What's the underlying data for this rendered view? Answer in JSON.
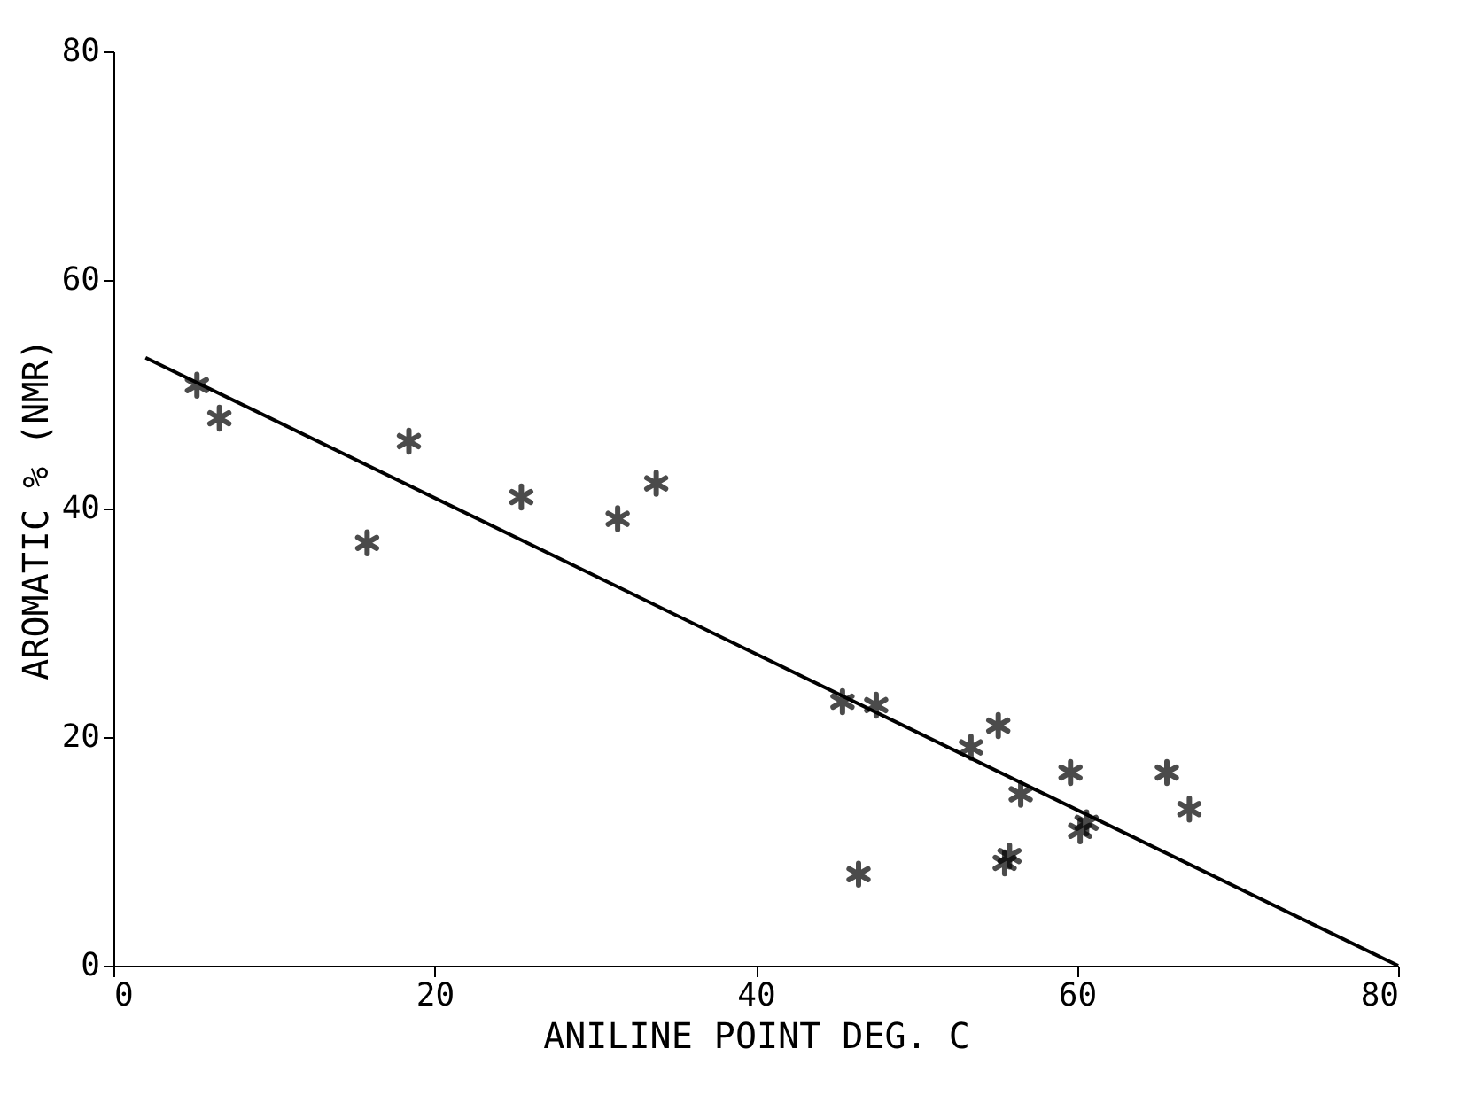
{
  "chart_data": {
    "type": "scatter",
    "xlabel": "ANILINE POINT DEG. C",
    "ylabel": "AROMATIC % (NMR)",
    "xlim": [
      0,
      80
    ],
    "ylim": [
      0,
      80
    ],
    "xticks": [
      0,
      20,
      40,
      60,
      80
    ],
    "yticks": [
      0,
      20,
      40,
      60,
      80
    ],
    "grid": false,
    "marker": "cross",
    "series": [
      {
        "color": "#000000",
        "x": [
          5.2,
          6.6,
          18.4,
          15.8,
          25.4,
          31.4,
          33.8,
          45.4,
          47.5,
          55.1,
          53.4,
          56.5,
          59.6,
          60.6,
          60.2,
          55.8,
          55.5,
          46.4,
          65.6,
          67.0
        ],
        "values": [
          50.8,
          47.9,
          45.9,
          37.0,
          41.0,
          39.1,
          42.2,
          23.1,
          22.8,
          21.0,
          19.1,
          15.0,
          16.9,
          12.5,
          11.8,
          9.6,
          9.0,
          8.0,
          16.9,
          13.7
        ]
      },
      {
        "type": "line",
        "color": "#000000",
        "line_style": "solid",
        "marker": "none",
        "x": [
          2,
          80
        ],
        "values": [
          53.2,
          0
        ]
      }
    ]
  }
}
